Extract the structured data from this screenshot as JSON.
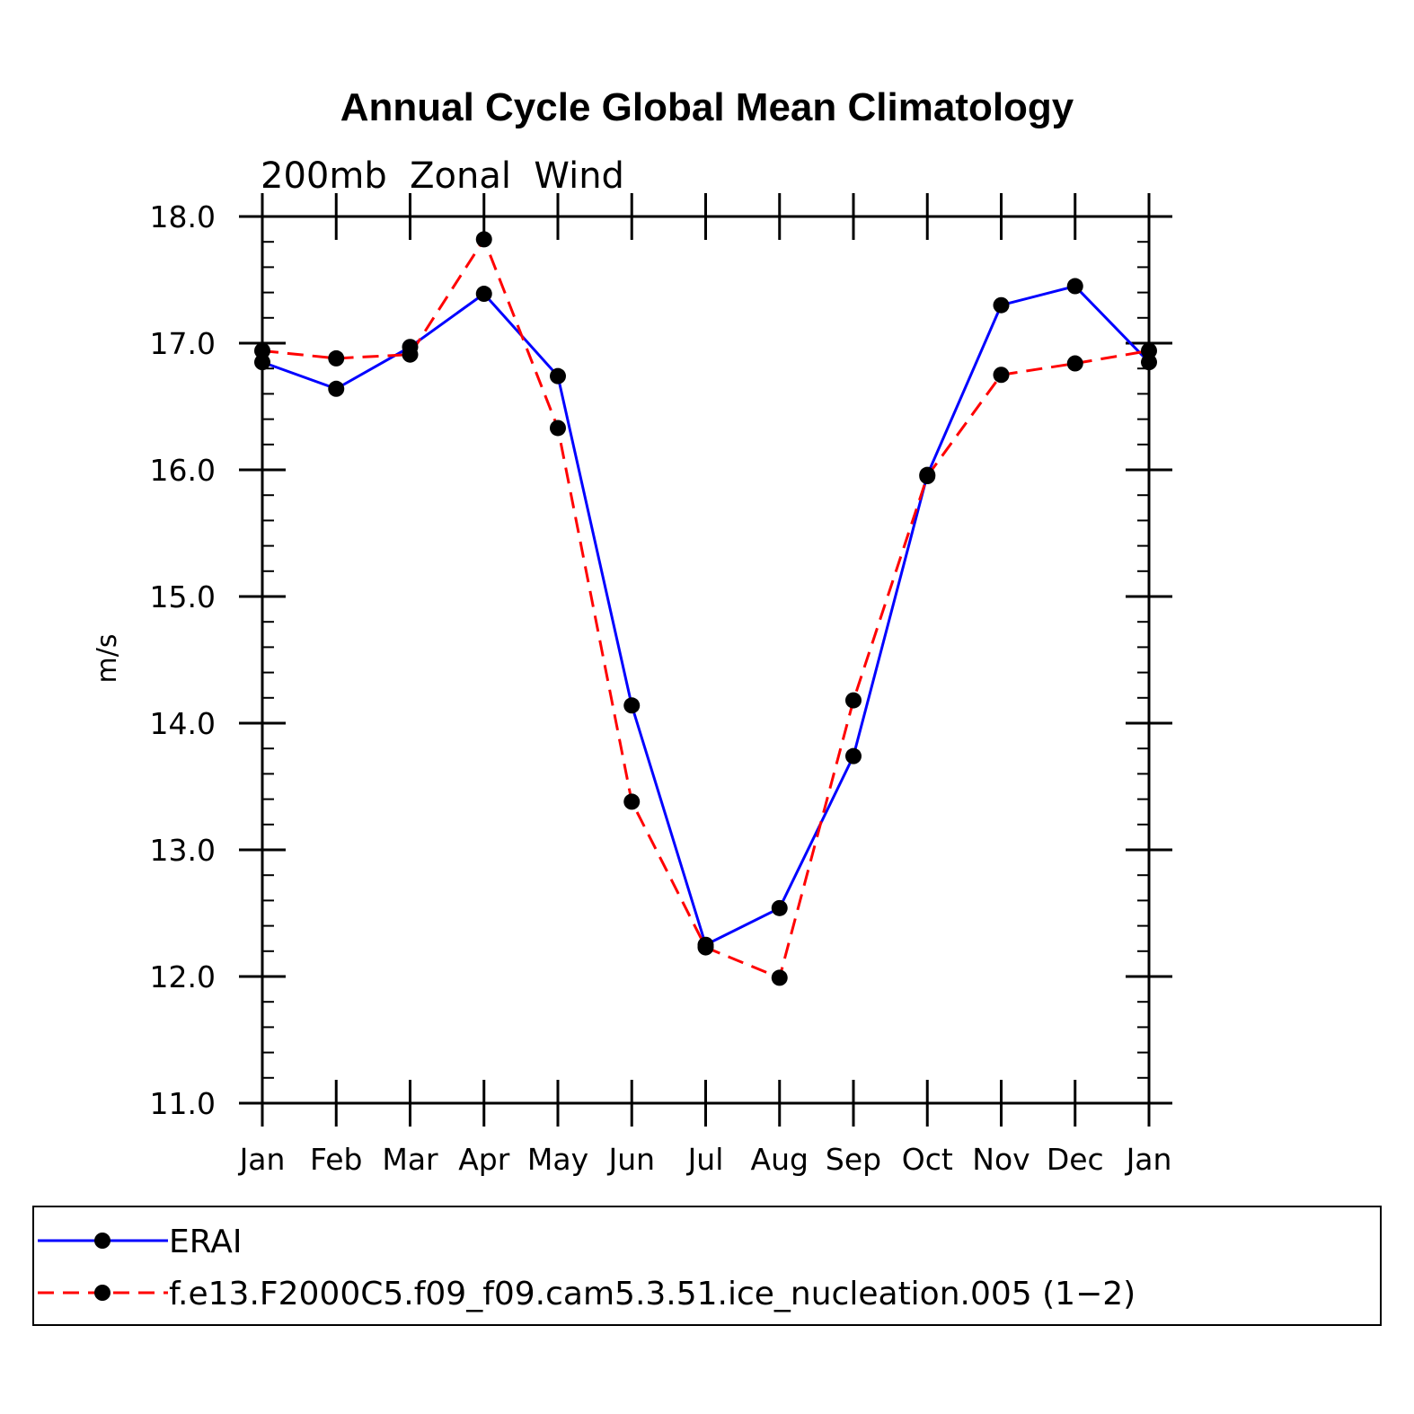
{
  "chart_data": {
    "type": "line",
    "title": "Annual Cycle Global Mean Climatology",
    "subtitle": "200mb  Zonal  Wind",
    "xlabel": "",
    "ylabel": "m/s",
    "categories": [
      "Jan",
      "Feb",
      "Mar",
      "Apr",
      "May",
      "Jun",
      "Jul",
      "Aug",
      "Sep",
      "Oct",
      "Nov",
      "Dec",
      "Jan"
    ],
    "ylim": [
      11.0,
      18.0
    ],
    "yticks": [
      "11.0",
      "12.0",
      "13.0",
      "14.0",
      "15.0",
      "16.0",
      "17.0",
      "18.0"
    ],
    "series": [
      {
        "name": "ERAI",
        "color": "#0000ff",
        "dash": "solid",
        "values": [
          16.85,
          16.64,
          16.97,
          17.39,
          16.74,
          14.14,
          12.25,
          12.54,
          13.74,
          15.96,
          17.3,
          17.45,
          16.85
        ]
      },
      {
        "name": "f.e13.F2000C5.f09_f09.cam5.3.51.ice_nucleation.005 (1−2)",
        "color": "#ff0000",
        "dash": "dashed",
        "values": [
          16.94,
          16.88,
          16.91,
          17.82,
          16.33,
          13.38,
          12.23,
          11.99,
          14.18,
          15.95,
          16.75,
          16.84,
          16.94
        ]
      }
    ],
    "legend_position": "bottom"
  }
}
